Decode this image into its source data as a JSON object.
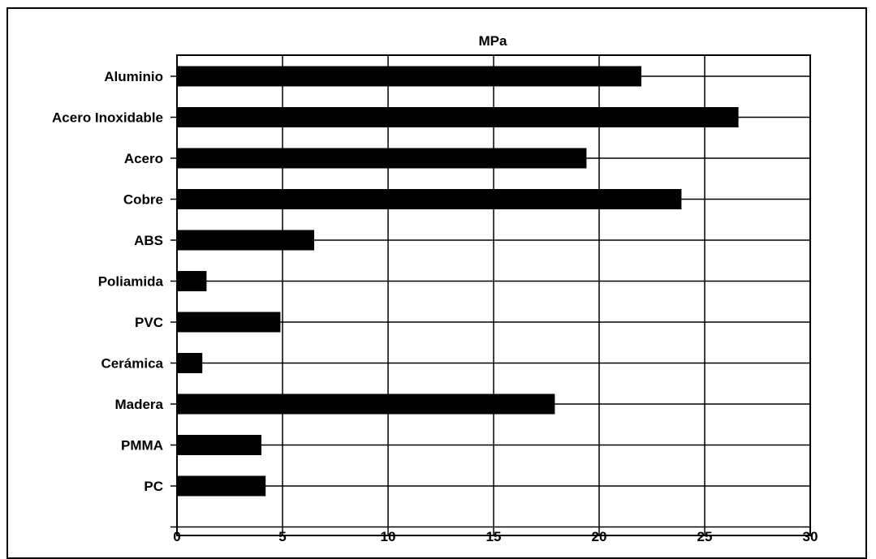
{
  "chart_data": {
    "type": "bar",
    "orientation": "horizontal",
    "title": "MPa",
    "categories": [
      "Aluminio",
      "Acero Inoxidable",
      "Acero",
      "Cobre",
      "ABS",
      "Poliamida",
      "PVC",
      "Cerámica",
      "Madera",
      "PMMA",
      "PC"
    ],
    "values": [
      22,
      26.6,
      19.4,
      23.9,
      6.5,
      1.4,
      4.9,
      1.2,
      17.9,
      4.0,
      4.2
    ],
    "xlim": [
      0,
      30
    ],
    "xticks": [
      "0",
      "5",
      "10",
      "15",
      "20",
      "25",
      "30"
    ],
    "grid": true,
    "legend": "none",
    "bar_color": "#000000"
  }
}
